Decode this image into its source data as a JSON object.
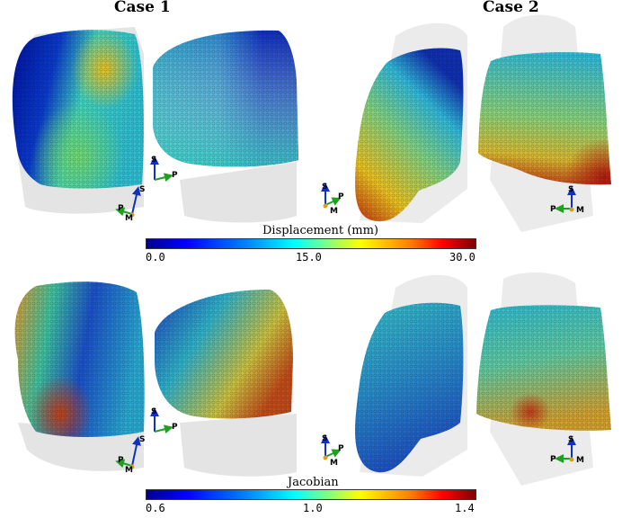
{
  "titles": {
    "case1": "Case 1",
    "case2": "Case 2"
  },
  "colorbars": {
    "displacement": {
      "label": "Displacement (mm)",
      "ticks": [
        "0.0",
        "15.0",
        "30.0"
      ]
    },
    "jacobian": {
      "label": "Jacobian",
      "ticks": [
        "0.6",
        "1.0",
        "1.4"
      ]
    }
  },
  "axis_labels": {
    "superior": "S",
    "posterior": "P",
    "medial": "M"
  },
  "colors": {
    "outline": "#e6e6e6",
    "cmap": [
      "#00008f",
      "#0000ff",
      "#0080ff",
      "#00ffff",
      "#80ff80",
      "#ffff00",
      "#ff8000",
      "#ff0000",
      "#800000"
    ]
  }
}
